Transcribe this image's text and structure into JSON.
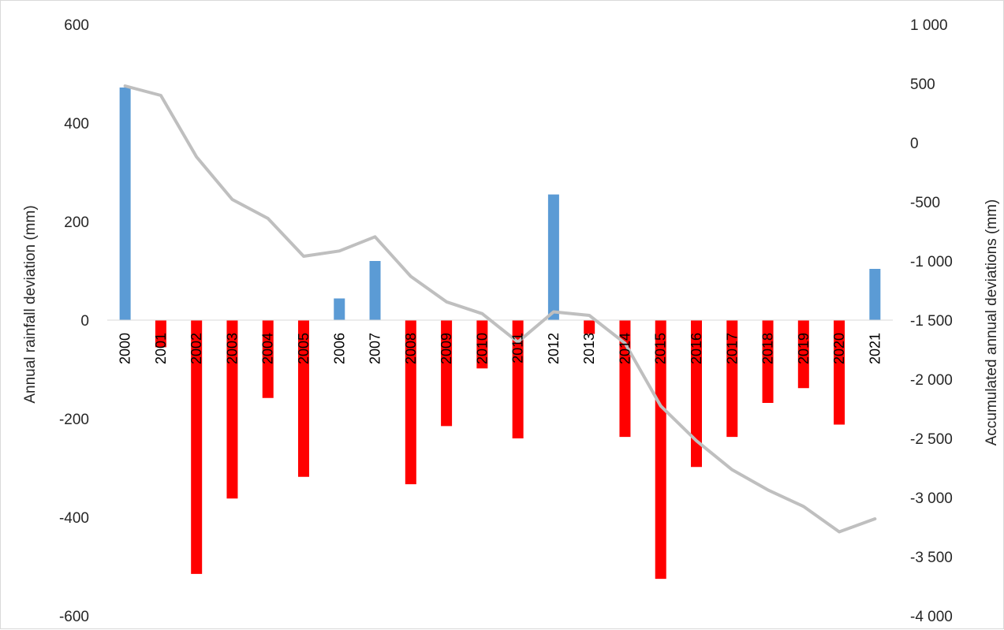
{
  "chart_data": {
    "type": "bar",
    "categories": [
      "2000",
      "2001",
      "2002",
      "2003",
      "2004",
      "2005",
      "2006",
      "2007",
      "2008",
      "2009",
      "2010",
      "2011",
      "2012",
      "2013",
      "2014",
      "2015",
      "2016",
      "2017",
      "2018",
      "2019",
      "2020",
      "2021"
    ],
    "series": [
      {
        "type": "bar",
        "axis": "left",
        "values": [
          472,
          -55,
          -515,
          -362,
          -158,
          -318,
          44,
          120,
          -333,
          -215,
          -98,
          -240,
          255,
          -28,
          -237,
          -525,
          -298,
          -237,
          -168,
          -138,
          -212,
          104
        ]
      },
      {
        "type": "line",
        "axis": "right",
        "values": [
          480,
          400,
          -120,
          -480,
          -640,
          -960,
          -915,
          -795,
          -1130,
          -1345,
          -1445,
          -1685,
          -1430,
          -1460,
          -1695,
          -2225,
          -2520,
          -2765,
          -2935,
          -3075,
          -3290,
          -3180
        ]
      }
    ],
    "xlabel": "",
    "ylabel": "Annual rainfall deviation (mm)",
    "y2label": "Accumulated annual deviations (mm)",
    "ylim": [
      -600,
      600
    ],
    "y2lim": [
      -4000,
      1000
    ],
    "yticks": [
      "600",
      "400",
      "200",
      "0",
      "-200",
      "-400",
      "-600"
    ],
    "y2ticks": [
      "1 000",
      "500",
      "0",
      "-500",
      "-1 000",
      "-1 500",
      "-2 000",
      "-2 500",
      "-3 000",
      "-3 500",
      "-4 000"
    ],
    "grid": false,
    "legend": "none",
    "colors": {
      "positive_bar": "#5b9bd5",
      "negative_bar": "#ff0000",
      "line": "#bfbfbf",
      "axis": "#d9d9d9"
    }
  }
}
